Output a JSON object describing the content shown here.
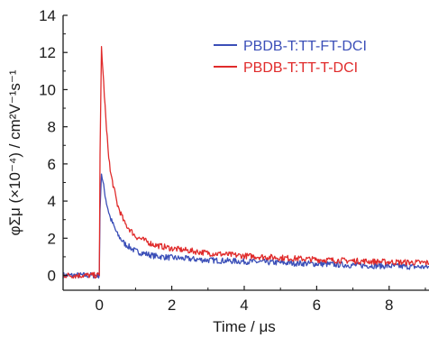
{
  "chart_data": {
    "type": "line",
    "xlabel": "Time / μs",
    "ylabel": "φΣμ (×10⁻⁴) / cm²V⁻¹s⁻¹",
    "xlim": [
      -1,
      9.1
    ],
    "ylim": [
      -0.8,
      14
    ],
    "x_ticks": [
      0,
      2,
      4,
      6,
      8
    ],
    "y_ticks": [
      0,
      2,
      4,
      6,
      8,
      10,
      12,
      14
    ],
    "grid": false,
    "legend_position": "top-right",
    "series": [
      {
        "name": "PBDB-T:TT-FT-DCI",
        "color": "#3b4fb8",
        "x": [
          -1,
          0,
          0.02,
          0.06,
          0.1,
          0.2,
          0.3,
          0.5,
          0.7,
          1.0,
          1.5,
          2,
          3,
          4,
          5,
          6,
          7,
          8,
          9
        ],
        "y": [
          0,
          0,
          3.5,
          5.5,
          5.0,
          3.9,
          3.1,
          2.2,
          1.7,
          1.3,
          1.05,
          0.95,
          0.82,
          0.75,
          0.68,
          0.62,
          0.55,
          0.5,
          0.45
        ]
      },
      {
        "name": "PBDB-T:TT-T-DCI",
        "color": "#e02b2b",
        "x": [
          -1,
          0,
          0.02,
          0.06,
          0.1,
          0.2,
          0.3,
          0.5,
          0.7,
          1.0,
          1.5,
          2,
          3,
          4,
          5,
          6,
          7,
          8,
          9
        ],
        "y": [
          0,
          0,
          6.5,
          12.3,
          11.0,
          7.8,
          5.6,
          3.8,
          2.8,
          2.1,
          1.65,
          1.45,
          1.2,
          1.05,
          0.95,
          0.85,
          0.78,
          0.72,
          0.68
        ]
      }
    ]
  }
}
